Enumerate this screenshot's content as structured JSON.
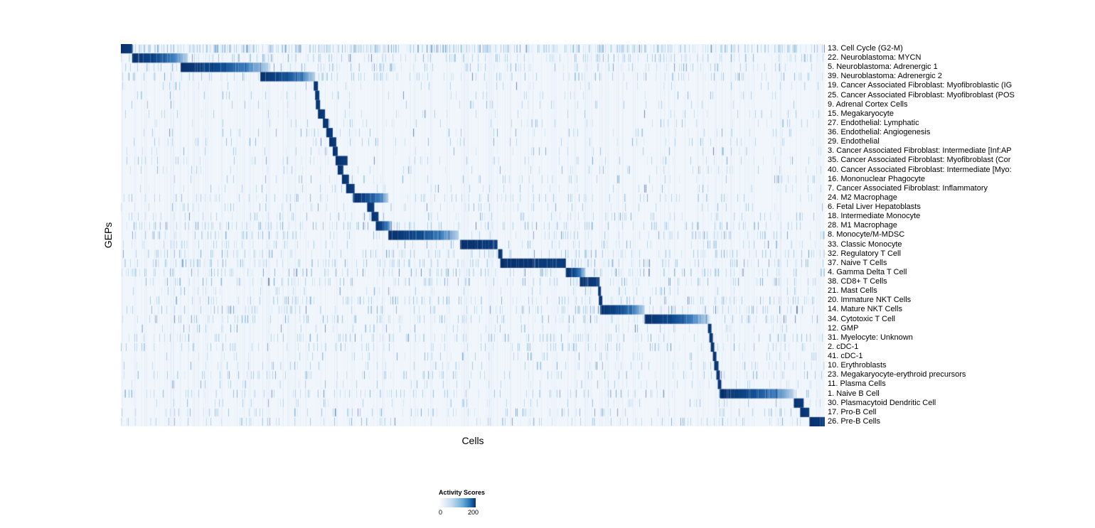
{
  "chart_data": {
    "type": "heatmap",
    "title": "",
    "xlabel": "Cells",
    "ylabel": "GEPs",
    "legend": {
      "title": "Activity Scores",
      "min": "0",
      "max": "200"
    },
    "colormap": {
      "name": "Blues",
      "low": "#ffffff",
      "mid": "#4292c6",
      "high": "#08306b",
      "background": "#f1f6fc"
    },
    "value_range": [
      0,
      200
    ],
    "rows": [
      {
        "label": "13. Cell Cycle (G2-M)",
        "block": [
          0.0,
          0.016
        ],
        "fade": false,
        "noise": 0.32
      },
      {
        "label": "22. Neuroblastoma: MYCN",
        "block": [
          0.016,
          0.095
        ],
        "fade": true,
        "noise": 0.14
      },
      {
        "label": "5. Neuroblastoma: Adrenergic 1",
        "block": [
          0.085,
          0.21
        ],
        "fade": true,
        "noise": 0.12
      },
      {
        "label": "39. Neuroblastoma: Adrenergic 2",
        "block": [
          0.198,
          0.276
        ],
        "fade": true,
        "noise": 0.12
      },
      {
        "label": "19. Cancer Associated Fibroblast: Myofibroblastic (IG",
        "block": [
          0.274,
          0.28
        ],
        "fade": false,
        "noise": 0.05
      },
      {
        "label": "25. Cancer Associated Fibroblast: Myofibroblast (POS",
        "block": [
          0.276,
          0.282
        ],
        "fade": false,
        "noise": 0.05
      },
      {
        "label": "9. Adrenal Cortex Cells",
        "block": [
          0.277,
          0.283
        ],
        "fade": false,
        "noise": 0.04
      },
      {
        "label": "15. Megakaryocyte",
        "block": [
          0.28,
          0.29
        ],
        "fade": false,
        "noise": 0.05
      },
      {
        "label": "27. Endothelial: Lymphatic",
        "block": [
          0.287,
          0.295
        ],
        "fade": false,
        "noise": 0.04
      },
      {
        "label": "36. Endothelial: Angiogenesis",
        "block": [
          0.292,
          0.301
        ],
        "fade": false,
        "noise": 0.05
      },
      {
        "label": "29. Endothelial",
        "block": [
          0.296,
          0.306
        ],
        "fade": false,
        "noise": 0.06
      },
      {
        "label": "3. Cancer Associated Fibroblast: Intermediate [Inf:AP",
        "block": [
          0.301,
          0.308
        ],
        "fade": false,
        "noise": 0.05
      },
      {
        "label": "35. Cancer Associated Fibroblast: Myofibroblast (Cor",
        "block": [
          0.305,
          0.322
        ],
        "fade": false,
        "noise": 0.05
      },
      {
        "label": "40. Cancer Associated Fibroblast: Intermediate [Myo:",
        "block": [
          0.308,
          0.316
        ],
        "fade": false,
        "noise": 0.05
      },
      {
        "label": "16. Mononuclear Phagocyte",
        "block": [
          0.314,
          0.324
        ],
        "fade": false,
        "noise": 0.06
      },
      {
        "label": "7. Cancer Associated Fibroblast: Inflammatory",
        "block": [
          0.32,
          0.332
        ],
        "fade": false,
        "noise": 0.05
      },
      {
        "label": "24. M2 Macrophage",
        "block": [
          0.33,
          0.38
        ],
        "fade": true,
        "noise": 0.1
      },
      {
        "label": "6. Fetal Liver Hepatoblasts",
        "block": [
          0.35,
          0.36
        ],
        "fade": false,
        "noise": 0.06
      },
      {
        "label": "18. Intermediate Monocyte",
        "block": [
          0.356,
          0.366
        ],
        "fade": false,
        "noise": 0.08
      },
      {
        "label": "28. M1 Macrophage",
        "block": [
          0.362,
          0.385
        ],
        "fade": true,
        "noise": 0.15
      },
      {
        "label": "8. Monocyte/M-MDSC",
        "block": [
          0.38,
          0.48
        ],
        "fade": true,
        "noise": 0.12
      },
      {
        "label": "33. Classic Monocyte",
        "block": [
          0.482,
          0.535
        ],
        "fade": false,
        "noise": 0.08
      },
      {
        "label": "32. Regulatory T Cell",
        "block": [
          0.536,
          0.542
        ],
        "fade": false,
        "noise": 0.15
      },
      {
        "label": "37. Naive T Cells",
        "block": [
          0.539,
          0.632
        ],
        "fade": false,
        "noise": 0.18
      },
      {
        "label": "4. Gamma Delta T Cell",
        "block": [
          0.632,
          0.66
        ],
        "fade": true,
        "noise": 0.15
      },
      {
        "label": "38. CD8+ T Cells",
        "block": [
          0.652,
          0.68
        ],
        "fade": false,
        "noise": 0.12
      },
      {
        "label": "21. Mast Cells",
        "block": [
          0.678,
          0.682
        ],
        "fade": false,
        "noise": 0.05
      },
      {
        "label": "20. Immature NKT Cells",
        "block": [
          0.679,
          0.684
        ],
        "fade": false,
        "noise": 0.12
      },
      {
        "label": "14. Mature NKT Cells",
        "block": [
          0.681,
          0.744
        ],
        "fade": true,
        "noise": 0.15
      },
      {
        "label": "34. Cytotoxic T Cell",
        "block": [
          0.744,
          0.835
        ],
        "fade": true,
        "noise": 0.12
      },
      {
        "label": "12. GMP",
        "block": [
          0.834,
          0.839
        ],
        "fade": false,
        "noise": 0.06
      },
      {
        "label": "31. Myelocyte: Unknown",
        "block": [
          0.836,
          0.841
        ],
        "fade": false,
        "noise": 0.12
      },
      {
        "label": "2. cDC-1",
        "block": [
          0.838,
          0.843
        ],
        "fade": false,
        "noise": 0.1
      },
      {
        "label": "41. cDC-1",
        "block": [
          0.841,
          0.846
        ],
        "fade": false,
        "noise": 0.06
      },
      {
        "label": "10. Erythroblasts",
        "block": [
          0.843,
          0.849
        ],
        "fade": false,
        "noise": 0.08
      },
      {
        "label": "23. Megakaryocyte-erythroid precursors",
        "block": [
          0.846,
          0.851
        ],
        "fade": false,
        "noise": 0.1
      },
      {
        "label": "11. Plasma Cells",
        "block": [
          0.848,
          0.853
        ],
        "fade": false,
        "noise": 0.06
      },
      {
        "label": "1. Naive B Cell",
        "block": [
          0.851,
          0.956
        ],
        "fade": true,
        "noise": 0.1
      },
      {
        "label": "30. Plasmacytoid Dendritic Cell",
        "block": [
          0.956,
          0.97
        ],
        "fade": false,
        "noise": 0.06
      },
      {
        "label": "17. Pro-B Cell",
        "block": [
          0.965,
          0.978
        ],
        "fade": false,
        "noise": 0.08
      },
      {
        "label": "26. Pre-B Cells",
        "block": [
          0.978,
          1.0
        ],
        "fade": false,
        "noise": 0.1
      }
    ]
  }
}
